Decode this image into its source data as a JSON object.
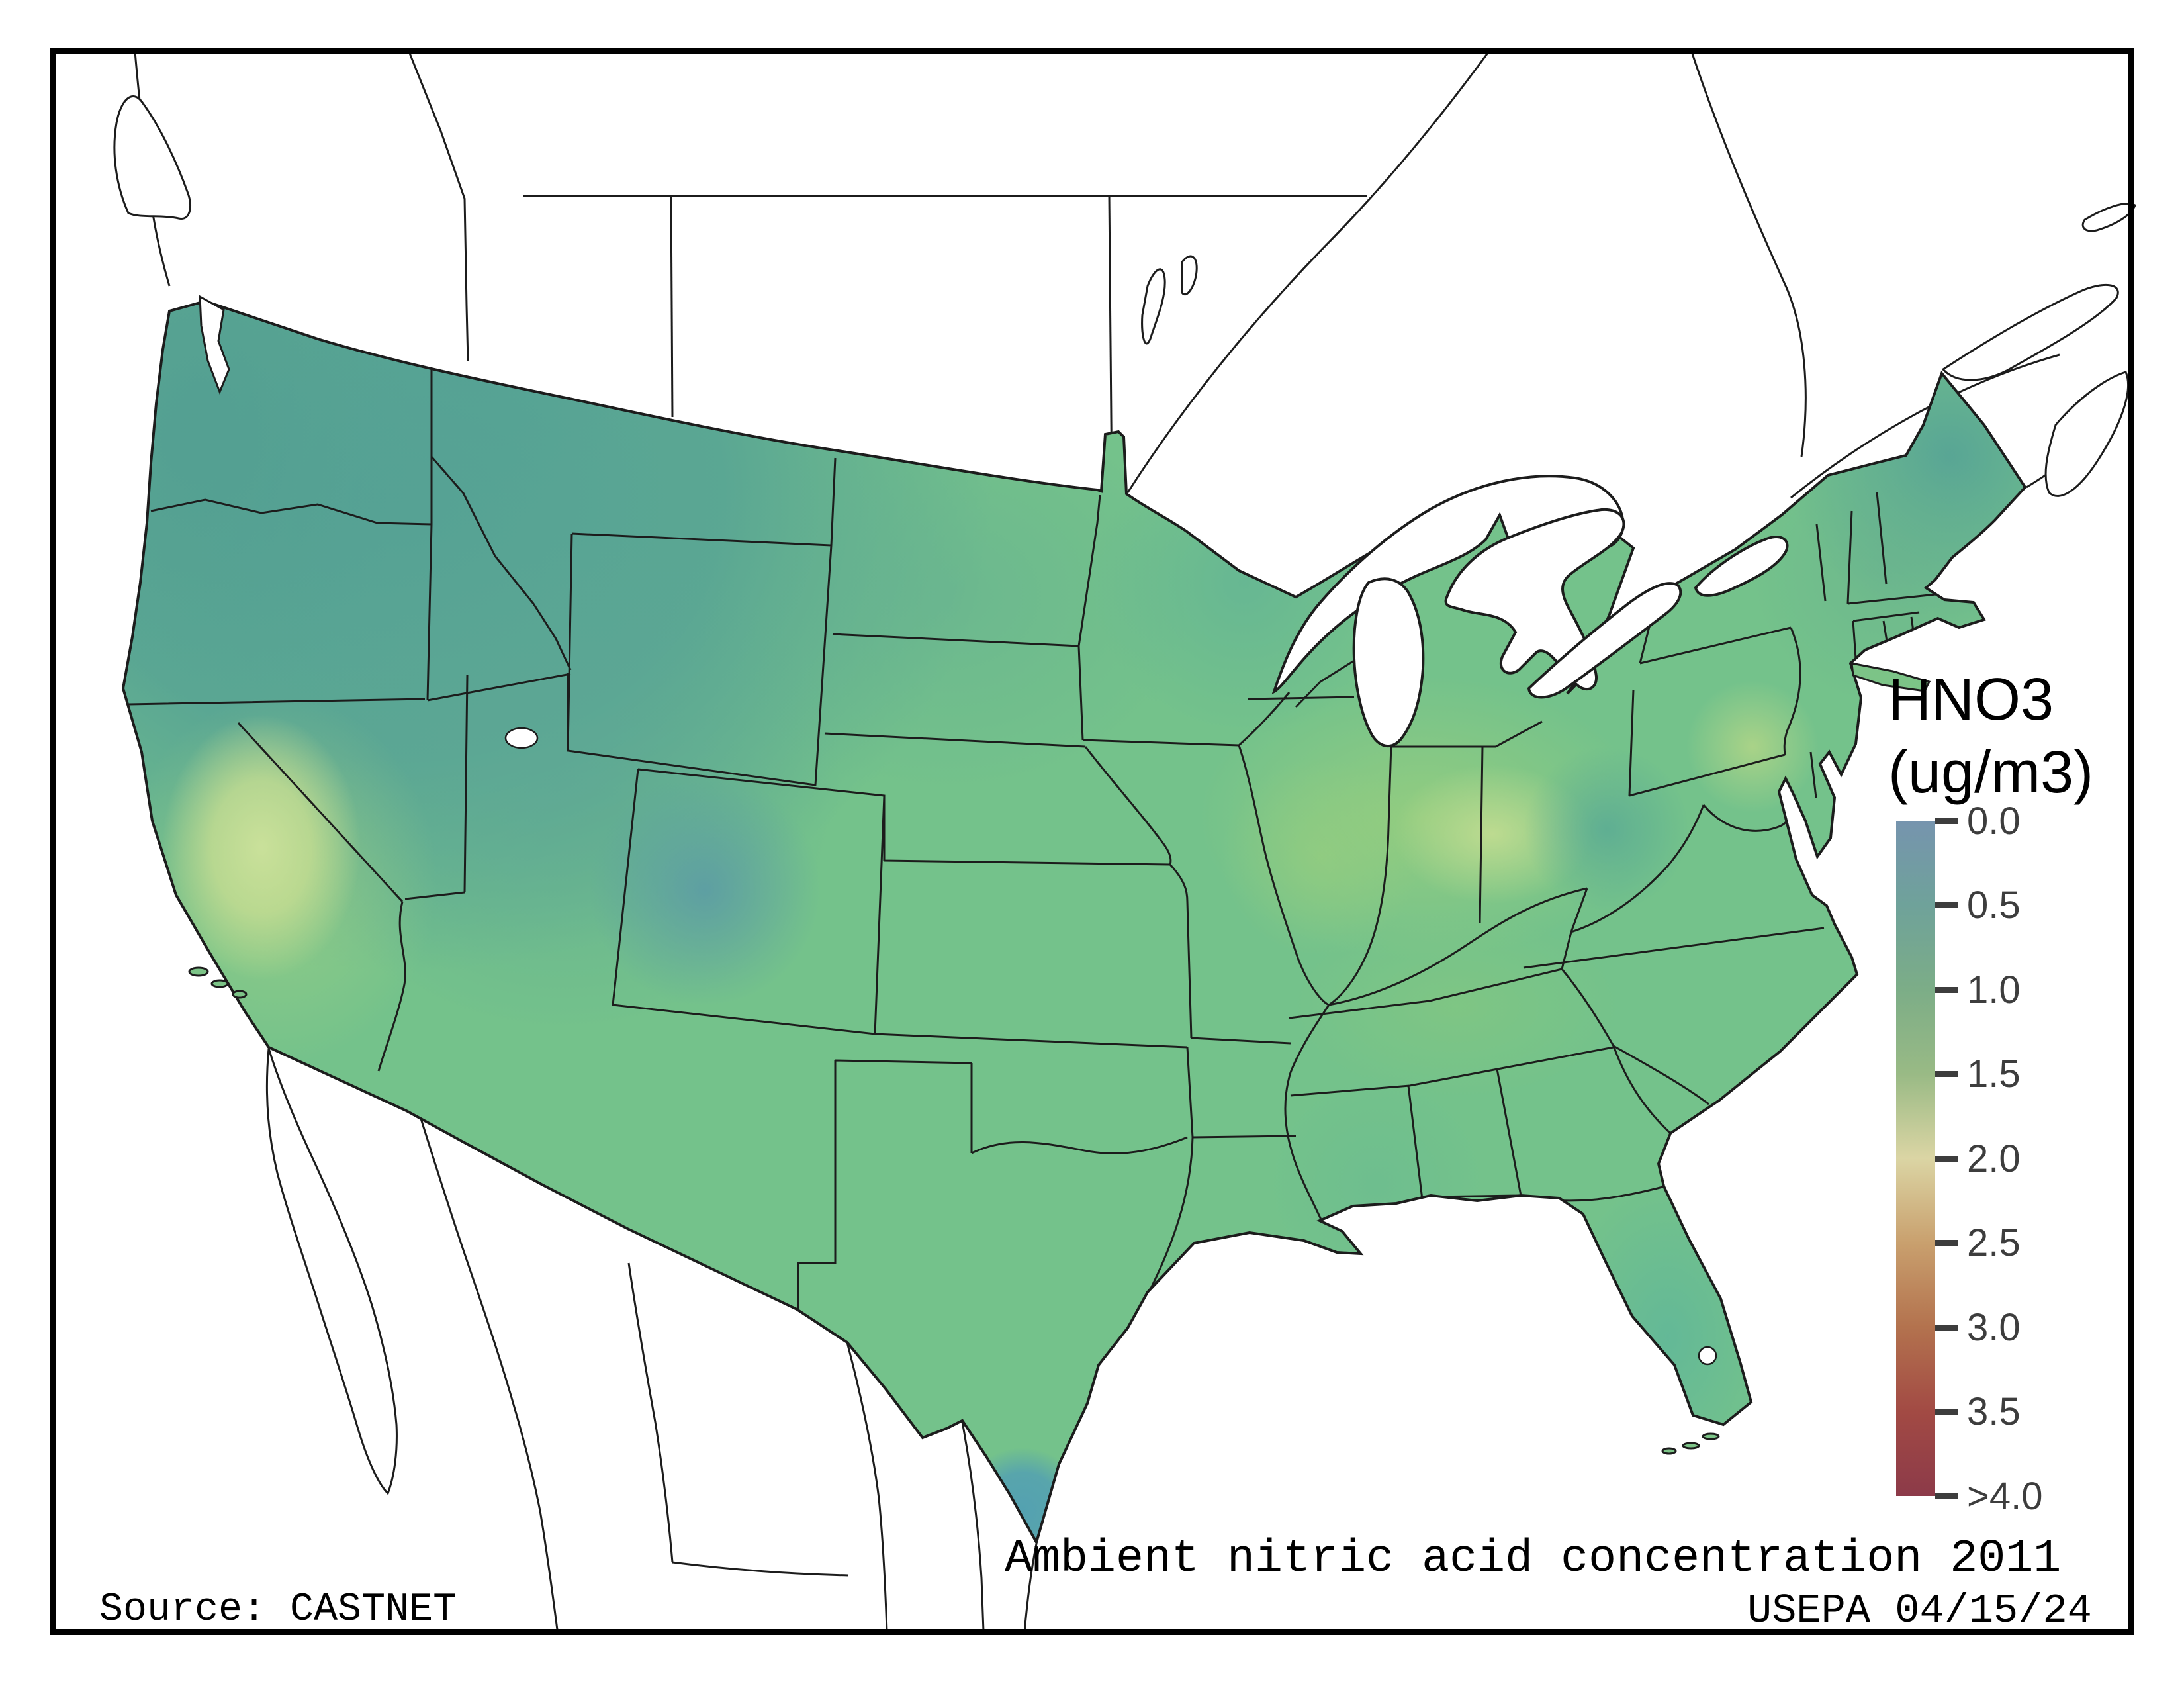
{
  "figure": {
    "title": "Ambient nitric acid concentration 2011",
    "source": "Source: CASTNET",
    "agency_date": "USEPA 04/15/24"
  },
  "legend": {
    "title_line1": "HNO3",
    "title_line2": "(ug/m3)",
    "ticks": [
      "0.0",
      "0.5",
      "1.0",
      "1.5",
      "2.0",
      "2.5",
      "3.0",
      "3.5",
      ">4.0"
    ],
    "tick_color": "#3d3d3d",
    "colormap_stops": [
      {
        "value": "0.0",
        "color": "#7694ae"
      },
      {
        "value": "0.5",
        "color": "#6fa29a"
      },
      {
        "value": "1.0",
        "color": "#7cad87"
      },
      {
        "value": "1.5",
        "color": "#99ba85"
      },
      {
        "value": "2.0",
        "color": "#dbd5a4"
      },
      {
        "value": "2.5",
        "color": "#c9a06e"
      },
      {
        "value": "3.0",
        "color": "#b3724e"
      },
      {
        "value": "3.5",
        "color": "#a24a44"
      },
      {
        "value": ">4.0",
        "color": "#8c3a49"
      }
    ]
  },
  "chart_data": {
    "type": "heatmap",
    "title": "Ambient nitric acid concentration 2011",
    "units": "ug/m3",
    "parameter": "HNO3",
    "scale_range": [
      0,
      4
    ],
    "legend_position": "right",
    "base_land_color": "#74c28b",
    "regions": [
      {
        "name": "Pacific Northwest (WA/OR/ID/MT)",
        "approx_value": 0.6
      },
      {
        "name": "Great Basin (NV/UT)",
        "approx_value": 0.7
      },
      {
        "name": "Western Colorado spot",
        "approx_value": 0.4
      },
      {
        "name": "California coast",
        "approx_value": 0.8
      },
      {
        "name": "California Central Valley",
        "approx_value": 1.7
      },
      {
        "name": "Southern California",
        "approx_value": 1.2
      },
      {
        "name": "Desert Southwest (AZ/NM)",
        "approx_value": 0.9
      },
      {
        "name": "Northern Plains (Dakotas)",
        "approx_value": 0.8
      },
      {
        "name": "Central Plains (NE/KS/OK)",
        "approx_value": 1.0
      },
      {
        "name": "Texas",
        "approx_value": 1.0
      },
      {
        "name": "South Texas tip",
        "approx_value": 0.2
      },
      {
        "name": "Upper Midwest (MN/WI)",
        "approx_value": 0.8
      },
      {
        "name": "Illinois",
        "approx_value": 1.4
      },
      {
        "name": "Indiana / Ohio",
        "approx_value": 1.6
      },
      {
        "name": "West Virginia Appalachia",
        "approx_value": 0.7
      },
      {
        "name": "Southeast Pennsylvania",
        "approx_value": 1.5
      },
      {
        "name": "Northeast (NY / New England)",
        "approx_value": 1.0
      },
      {
        "name": "Maine",
        "approx_value": 0.6
      },
      {
        "name": "Tennessee / Georgia",
        "approx_value": 1.1
      },
      {
        "name": "Gulf Coast (LA/MS)",
        "approx_value": 0.9
      },
      {
        "name": "Florida",
        "approx_value": 0.7
      }
    ]
  }
}
